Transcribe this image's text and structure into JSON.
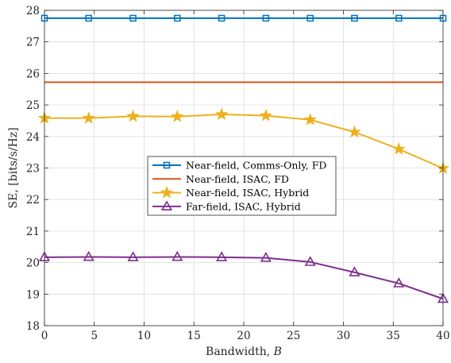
{
  "chart_data": {
    "type": "line",
    "xlabel": "Bandwidth, ",
    "xlabel_symbol": "B",
    "ylabel": "SE, [bits/s/Hz]",
    "xlim": [
      0,
      40
    ],
    "ylim": [
      18,
      28
    ],
    "xticks": [
      0,
      5,
      10,
      15,
      20,
      25,
      30,
      35,
      40
    ],
    "yticks": [
      18,
      19,
      20,
      21,
      22,
      23,
      24,
      25,
      26,
      27,
      28
    ],
    "grid": true,
    "legend_position": "center",
    "series": [
      {
        "name": "Near-field, Comms-Only, FD",
        "color": "#0072BD",
        "marker": "square",
        "x": [
          0,
          4.44,
          8.89,
          13.33,
          17.78,
          22.22,
          26.67,
          31.11,
          35.56,
          40
        ],
        "values": [
          27.75,
          27.75,
          27.75,
          27.75,
          27.75,
          27.75,
          27.75,
          27.75,
          27.75,
          27.75
        ]
      },
      {
        "name": "Near-field, ISAC, FD",
        "color": "#D95319",
        "marker": "none",
        "x": [
          0,
          40
        ],
        "values": [
          25.72,
          25.72
        ]
      },
      {
        "name": "Near-field, ISAC, Hybrid",
        "color": "#EDB120",
        "marker": "star",
        "x": [
          0,
          4.44,
          8.89,
          13.33,
          17.78,
          22.22,
          26.67,
          31.11,
          35.56,
          40
        ],
        "values": [
          24.58,
          24.58,
          24.64,
          24.63,
          24.7,
          24.66,
          24.53,
          24.14,
          23.6,
          22.99
        ]
      },
      {
        "name": "Far-field, ISAC, Hybrid",
        "color": "#7E2F8E",
        "marker": "triangle",
        "x": [
          0,
          4.44,
          8.89,
          13.33,
          17.78,
          22.22,
          26.67,
          31.11,
          35.56,
          40
        ],
        "values": [
          20.17,
          20.18,
          20.17,
          20.18,
          20.17,
          20.15,
          20.02,
          19.69,
          19.34,
          18.85
        ]
      }
    ]
  }
}
